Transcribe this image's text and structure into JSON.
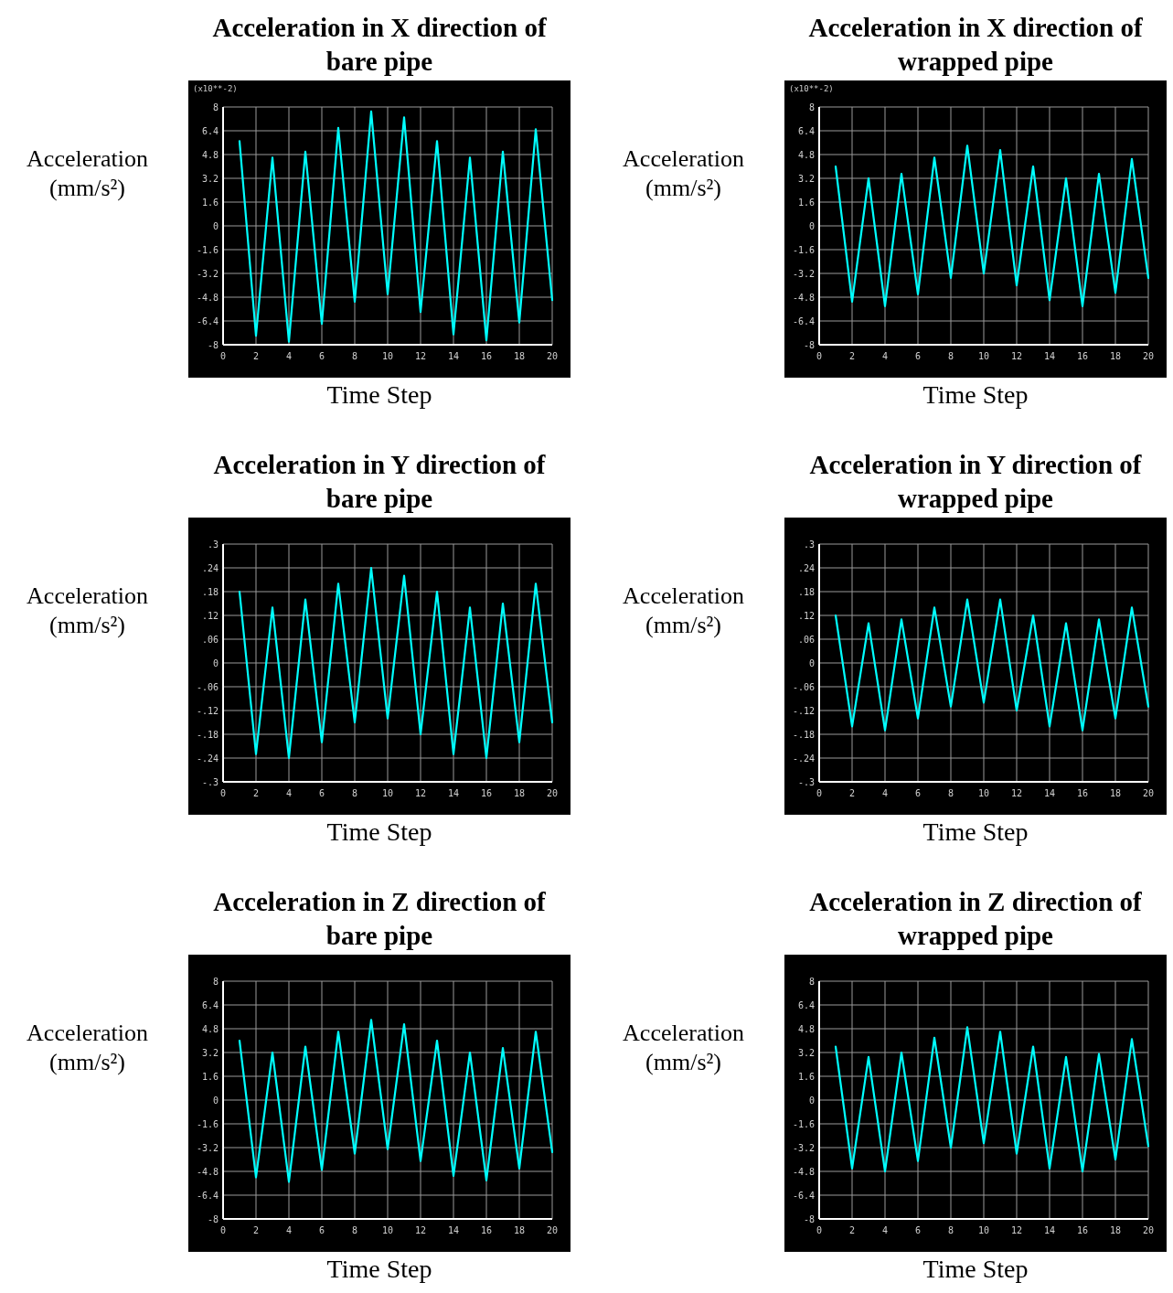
{
  "chart_data": [
    {
      "type": "line",
      "title": "Acceleration in X direction of bare pipe",
      "xlabel": "Time Step",
      "ylabel": "Acceleration (mm/s²)",
      "annotations": [
        "(x10**-2)"
      ],
      "x": [
        1,
        2,
        3,
        4,
        5,
        6,
        7,
        8,
        9,
        10,
        11,
        12,
        13,
        14,
        15,
        16,
        17,
        18,
        19,
        20
      ],
      "color": "#00ffff",
      "grid": true,
      "xlim": [
        0,
        20
      ],
      "xticks": [
        0,
        2,
        4,
        6,
        8,
        10,
        12,
        14,
        16,
        18,
        20
      ],
      "ylim": [
        -8,
        8
      ],
      "yticks": [
        -8,
        -6.4,
        -4.8,
        -3.2,
        -1.6,
        0,
        1.6,
        3.2,
        4.8,
        6.4,
        8
      ],
      "values": [
        5.7,
        -7.4,
        4.6,
        -7.8,
        5.0,
        -6.6,
        6.6,
        -5.1,
        7.7,
        -4.6,
        7.3,
        -5.8,
        5.7,
        -7.3,
        4.6,
        -7.7,
        5.0,
        -6.5,
        6.5,
        -5.0
      ]
    },
    {
      "type": "line",
      "title": "Acceleration in X direction of wrapped pipe",
      "xlabel": "Time Step",
      "ylabel": "Acceleration (mm/s²)",
      "annotations": [
        "(x10**-2)"
      ],
      "x": [
        1,
        2,
        3,
        4,
        5,
        6,
        7,
        8,
        9,
        10,
        11,
        12,
        13,
        14,
        15,
        16,
        17,
        18,
        19,
        20
      ],
      "color": "#00ffff",
      "grid": true,
      "xlim": [
        0,
        20
      ],
      "xticks": [
        0,
        2,
        4,
        6,
        8,
        10,
        12,
        14,
        16,
        18,
        20
      ],
      "ylim": [
        -8,
        8
      ],
      "yticks": [
        -8,
        -6.4,
        -4.8,
        -3.2,
        -1.6,
        0,
        1.6,
        3.2,
        4.8,
        6.4,
        8
      ],
      "values": [
        4.0,
        -5.1,
        3.2,
        -5.4,
        3.5,
        -4.6,
        4.6,
        -3.5,
        5.4,
        -3.2,
        5.1,
        -4.0,
        4.0,
        -5.0,
        3.2,
        -5.4,
        3.5,
        -4.5,
        4.5,
        -3.5
      ]
    },
    {
      "type": "line",
      "title": "Acceleration in Y direction of bare pipe",
      "xlabel": "Time Step",
      "ylabel": "Acceleration (mm/s²)",
      "x": [
        1,
        2,
        3,
        4,
        5,
        6,
        7,
        8,
        9,
        10,
        11,
        12,
        13,
        14,
        15,
        16,
        17,
        18,
        19,
        20
      ],
      "color": "#00ffff",
      "grid": true,
      "xlim": [
        0,
        20
      ],
      "xticks": [
        0,
        2,
        4,
        6,
        8,
        10,
        12,
        14,
        16,
        18,
        20
      ],
      "ylim": [
        -0.3,
        0.3
      ],
      "yticks": [
        {
          "value": -0.3,
          "label": "-.3"
        },
        {
          "value": -0.24,
          "label": "-.24"
        },
        {
          "value": -0.18,
          "label": "-.18"
        },
        {
          "value": -0.12,
          "label": "-.12"
        },
        {
          "value": -0.06,
          "label": "-.06"
        },
        0,
        {
          "value": 0.06,
          "label": ".06"
        },
        {
          "value": 0.12,
          "label": ".12"
        },
        {
          "value": 0.18,
          "label": ".18"
        },
        {
          "value": 0.24,
          "label": ".24"
        },
        {
          "value": 0.3,
          "label": ".3"
        }
      ],
      "values": [
        0.18,
        -0.23,
        0.14,
        -0.24,
        0.16,
        -0.2,
        0.2,
        -0.15,
        0.24,
        -0.14,
        0.22,
        -0.18,
        0.18,
        -0.23,
        0.14,
        -0.24,
        0.15,
        -0.2,
        0.2,
        -0.15
      ]
    },
    {
      "type": "line",
      "title": "Acceleration in Y direction of wrapped pipe",
      "xlabel": "Time Step",
      "ylabel": "Acceleration (mm/s²)",
      "x": [
        1,
        2,
        3,
        4,
        5,
        6,
        7,
        8,
        9,
        10,
        11,
        12,
        13,
        14,
        15,
        16,
        17,
        18,
        19,
        20
      ],
      "color": "#00ffff",
      "grid": true,
      "xlim": [
        0,
        20
      ],
      "xticks": [
        0,
        2,
        4,
        6,
        8,
        10,
        12,
        14,
        16,
        18,
        20
      ],
      "ylim": [
        -0.3,
        0.3
      ],
      "yticks": [
        {
          "value": -0.3,
          "label": "-.3"
        },
        {
          "value": -0.24,
          "label": "-.24"
        },
        {
          "value": -0.18,
          "label": "-.18"
        },
        {
          "value": -0.12,
          "label": "-.12"
        },
        {
          "value": -0.06,
          "label": "-.06"
        },
        0,
        {
          "value": 0.06,
          "label": ".06"
        },
        {
          "value": 0.12,
          "label": ".12"
        },
        {
          "value": 0.18,
          "label": ".18"
        },
        {
          "value": 0.24,
          "label": ".24"
        },
        {
          "value": 0.3,
          "label": ".3"
        }
      ],
      "values": [
        0.12,
        -0.16,
        0.1,
        -0.17,
        0.11,
        -0.14,
        0.14,
        -0.11,
        0.16,
        -0.1,
        0.16,
        -0.12,
        0.12,
        -0.16,
        0.1,
        -0.17,
        0.11,
        -0.14,
        0.14,
        -0.11
      ]
    },
    {
      "type": "line",
      "title": "Acceleration in Z direction of bare pipe",
      "xlabel": "Time Step",
      "ylabel": "Acceleration (mm/s²)",
      "x": [
        1,
        2,
        3,
        4,
        5,
        6,
        7,
        8,
        9,
        10,
        11,
        12,
        13,
        14,
        15,
        16,
        17,
        18,
        19,
        20
      ],
      "color": "#00ffff",
      "grid": true,
      "xlim": [
        0,
        20
      ],
      "xticks": [
        0,
        2,
        4,
        6,
        8,
        10,
        12,
        14,
        16,
        18,
        20
      ],
      "ylim": [
        -8,
        8
      ],
      "yticks": [
        -8,
        -6.4,
        -4.8,
        -3.2,
        -1.6,
        0,
        1.6,
        3.2,
        4.8,
        6.4,
        8
      ],
      "values": [
        4.0,
        -5.2,
        3.2,
        -5.5,
        3.6,
        -4.7,
        4.6,
        -3.6,
        5.4,
        -3.3,
        5.1,
        -4.1,
        4.0,
        -5.1,
        3.2,
        -5.4,
        3.5,
        -4.6,
        4.6,
        -3.5
      ]
    },
    {
      "type": "line",
      "title": "Acceleration in Z direction of wrapped pipe",
      "xlabel": "Time Step",
      "ylabel": "Acceleration (mm/s²)",
      "x": [
        1,
        2,
        3,
        4,
        5,
        6,
        7,
        8,
        9,
        10,
        11,
        12,
        13,
        14,
        15,
        16,
        17,
        18,
        19,
        20
      ],
      "color": "#00ffff",
      "grid": true,
      "xlim": [
        0,
        20
      ],
      "xticks": [
        0,
        2,
        4,
        6,
        8,
        10,
        12,
        14,
        16,
        18,
        20
      ],
      "ylim": [
        -8,
        8
      ],
      "yticks": [
        -8,
        -6.4,
        -4.8,
        -3.2,
        -1.6,
        0,
        1.6,
        3.2,
        4.8,
        6.4,
        8
      ],
      "values": [
        3.6,
        -4.6,
        2.9,
        -4.8,
        3.2,
        -4.1,
        4.2,
        -3.2,
        4.9,
        -2.9,
        4.6,
        -3.6,
        3.6,
        -4.6,
        2.9,
        -4.8,
        3.1,
        -4.0,
        4.1,
        -3.1
      ]
    }
  ]
}
